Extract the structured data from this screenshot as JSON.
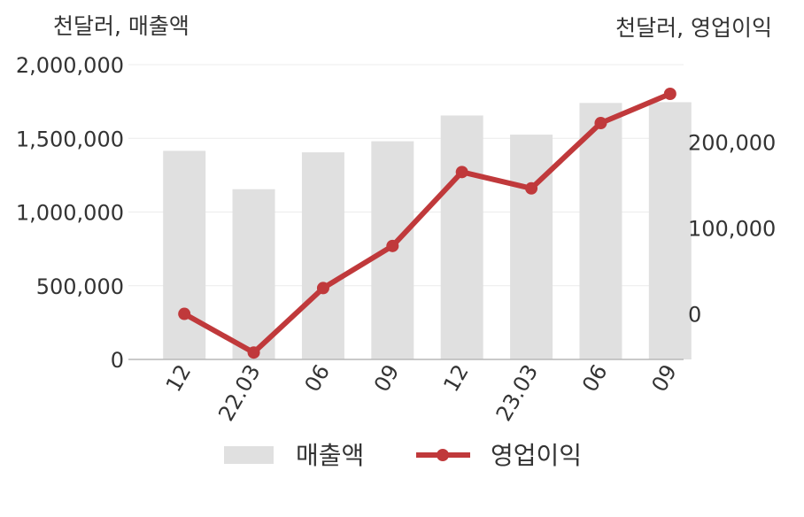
{
  "chart_data": {
    "type": "bar",
    "categories": [
      "12",
      "22.03",
      "06",
      "09",
      "12",
      "23.03",
      "06",
      "09"
    ],
    "left_axis": {
      "label": "천달러, 매출액",
      "ticks": [
        "2,000,000",
        "1,500,000",
        "1,000,000",
        "500,000",
        "0"
      ],
      "tick_values": [
        2000000,
        1500000,
        1000000,
        500000,
        0
      ],
      "ylim": [
        0,
        2000000
      ]
    },
    "right_axis": {
      "label": "천달러, 영업이익",
      "ticks": [
        "200,000",
        "100,000",
        "0"
      ],
      "tick_values": [
        200000,
        100000,
        0
      ],
      "ylim": [
        -53000,
        290000
      ]
    },
    "series": [
      {
        "name": "매출액",
        "type": "bar",
        "axis": "left",
        "color": "#e0e0e0",
        "values": [
          1415000,
          1155000,
          1405000,
          1480000,
          1655000,
          1525000,
          1740000,
          1745000
        ]
      },
      {
        "name": "영업이익",
        "type": "line",
        "axis": "right",
        "color": "#c0393b",
        "values": [
          0,
          -45000,
          30000,
          79000,
          165000,
          146000,
          222000,
          256000
        ]
      }
    ],
    "grid": true,
    "legend": "bottom"
  }
}
